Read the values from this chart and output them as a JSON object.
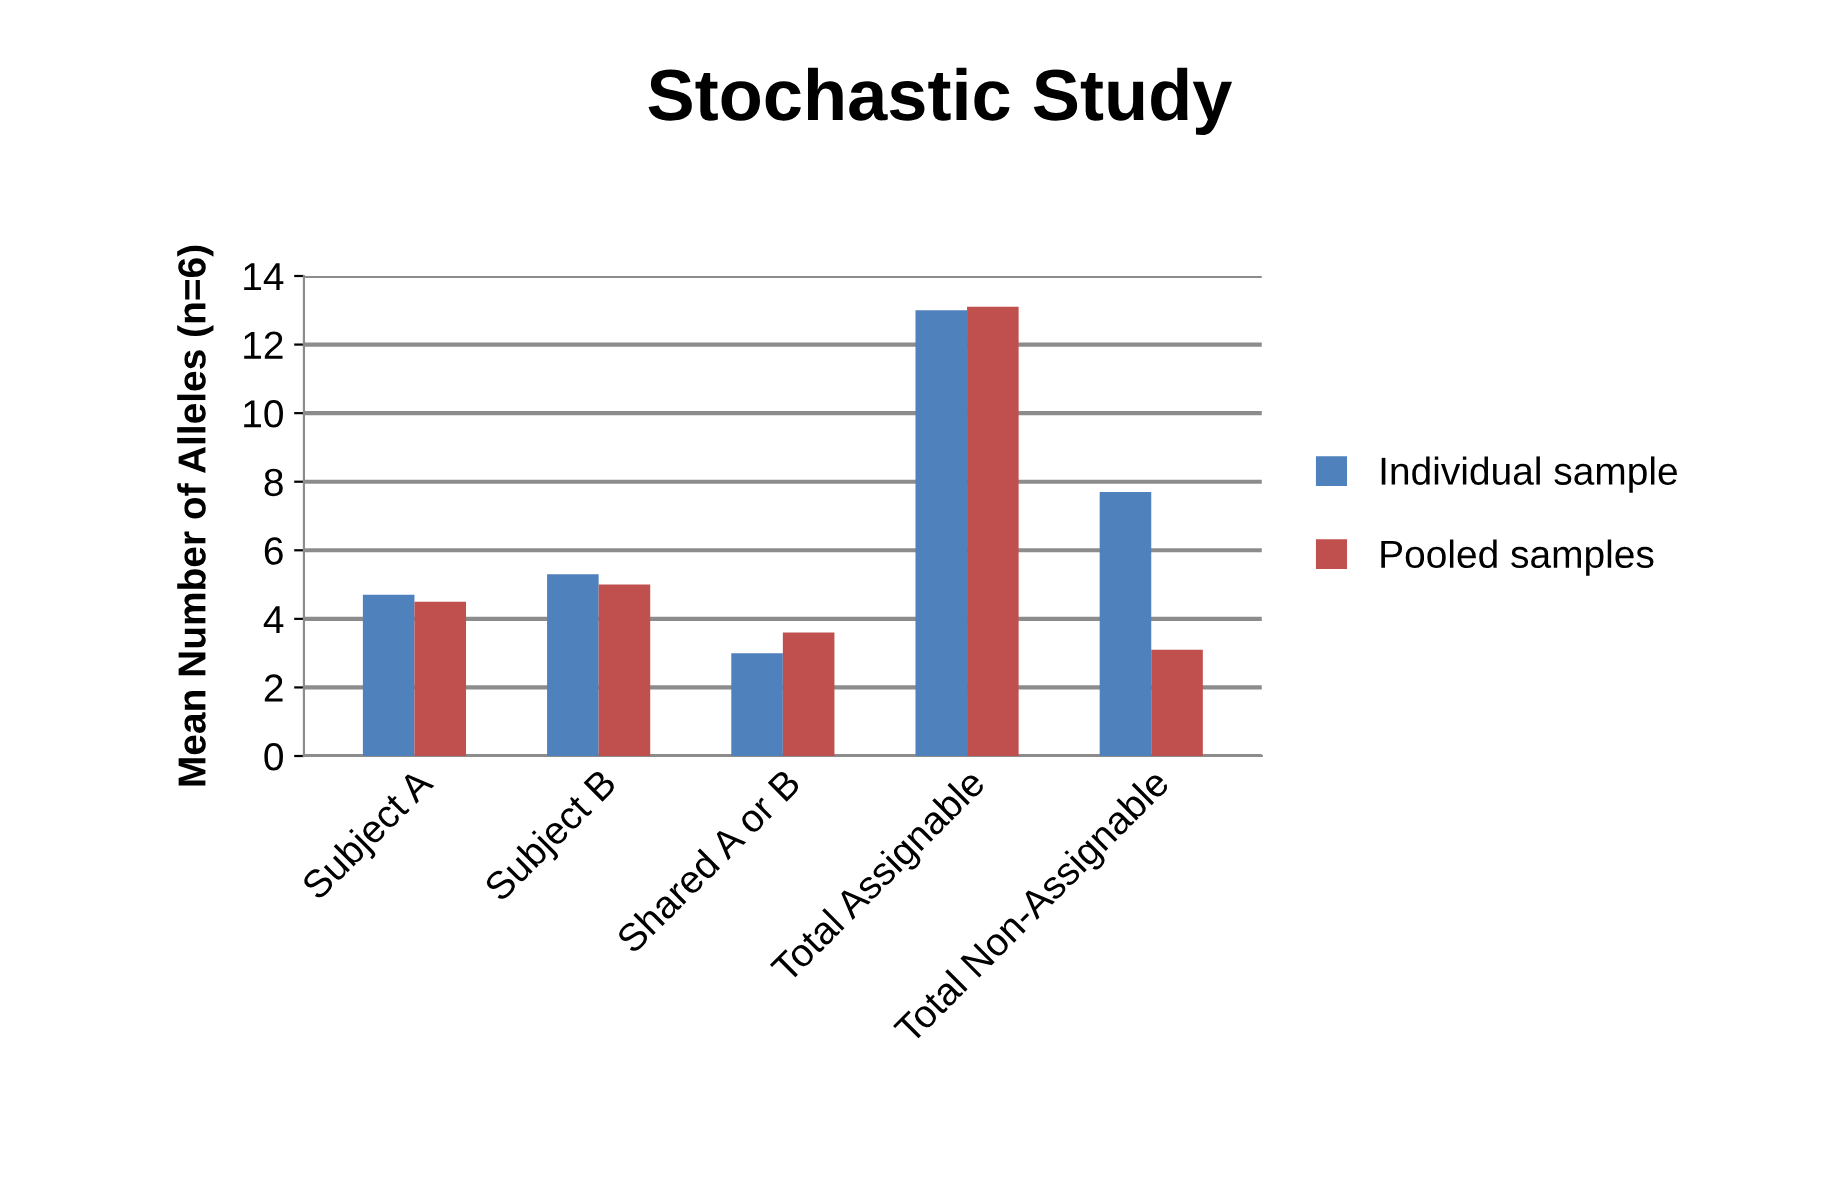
{
  "chart_data": {
    "type": "bar",
    "title": "Stochastic Study",
    "ylabel": "Mean Number of Alleles (n=6)",
    "categories": [
      "Subject A",
      "Subject B",
      "Shared A or B",
      "Total Assignable",
      "Total Non-Assignable"
    ],
    "series": [
      {
        "name": "Individual sample",
        "color": "#4f81bd",
        "values": [
          4.7,
          5.3,
          3.0,
          13.0,
          7.7
        ]
      },
      {
        "name": "Pooled samples",
        "color": "#c0504d",
        "values": [
          4.5,
          5.0,
          3.6,
          13.1,
          3.1
        ]
      }
    ],
    "ylim": [
      0,
      14
    ],
    "yticks": [
      0,
      2,
      4,
      6,
      8,
      10,
      12,
      14
    ],
    "grid": "y",
    "legend": "right"
  }
}
